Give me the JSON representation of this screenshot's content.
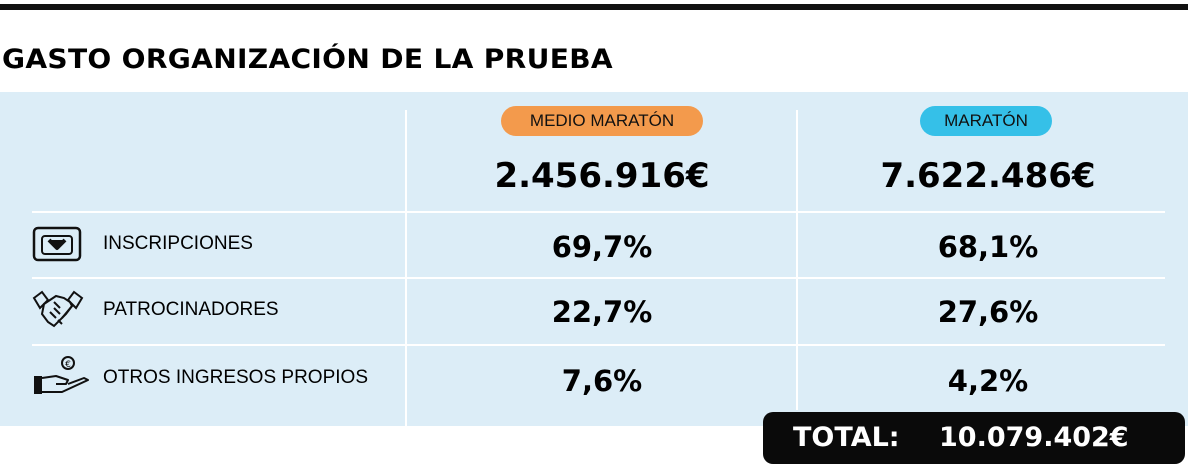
{
  "title": "GASTO ORGANIZACIÓN DE LA PRUEBA",
  "colors": {
    "panel": "#dcedf7",
    "medio_pill": "#f39a4c",
    "maraton_pill": "#35c0e8",
    "total_box": "#0a0a0a"
  },
  "columns": [
    {
      "label": "MEDIO MARATÓN",
      "amount": "2.456.916€"
    },
    {
      "label": "MARATÓN",
      "amount": "7.622.486€"
    }
  ],
  "rows": [
    {
      "icon": "inbox-download-icon",
      "label": "INSCRIPCIONES",
      "values": [
        "69,7%",
        "68,1%"
      ]
    },
    {
      "icon": "handshake-icon",
      "label": "PATROCINADORES",
      "values": [
        "22,7%",
        "27,6%"
      ]
    },
    {
      "icon": "hand-coin-icon",
      "label": "OTROS INGRESOS PROPIOS",
      "values": [
        "7,6%",
        "4,2%"
      ]
    }
  ],
  "total": {
    "label": "TOTAL:",
    "value": "10.079.402€"
  }
}
